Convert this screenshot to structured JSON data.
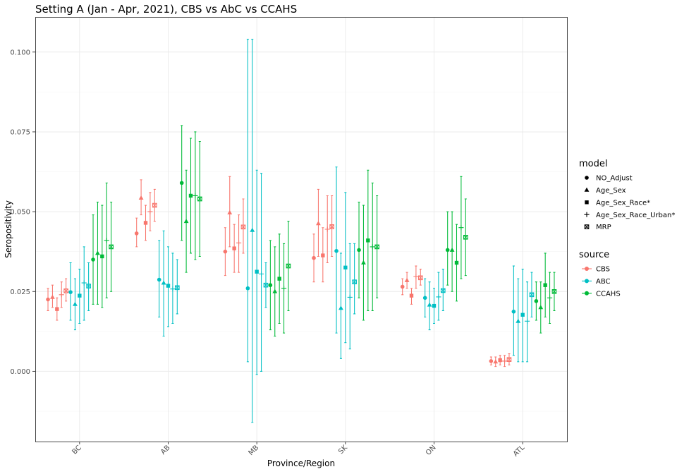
{
  "chart_data": {
    "type": "scatter",
    "title": "Setting A (Jan - Apr, 2021), CBS vs AbC vs CCAHS",
    "xlabel": "Province/Region",
    "ylabel": "Seropositivity",
    "categories": [
      "BC",
      "AB",
      "MB",
      "SK",
      "ON",
      "ATL"
    ],
    "ylim": [
      -0.022,
      0.111
    ],
    "y_ticks": [
      0.0,
      0.025,
      0.05,
      0.075,
      0.1
    ],
    "y_tick_labels": [
      "0.000",
      "0.025",
      "0.050",
      "0.075",
      "0.100"
    ],
    "grid": true,
    "legend_position": "right",
    "models": [
      "NO_Adjust",
      "Age_Sex",
      "Age_Sex_Race*",
      "Age_Sex_Race_Urban*",
      "MRP"
    ],
    "model_shapes": [
      "circle",
      "triangle",
      "square",
      "plus",
      "boxed-x"
    ],
    "legend_model_title": "model",
    "legend_source_title": "source",
    "sources": [
      {
        "name": "CBS",
        "color": "#F8766D"
      },
      {
        "name": "ABC",
        "color": "#00BFC4"
      },
      {
        "name": "CCAHS",
        "color": "#00BA38"
      }
    ],
    "series": [
      {
        "source": "CBS",
        "model": "NO_Adjust",
        "values": [
          0.0225,
          0.0432,
          0.0375,
          0.0355,
          0.0265,
          0.0032
        ],
        "lower": [
          0.019,
          0.039,
          0.03,
          0.028,
          0.024,
          0.002
        ],
        "upper": [
          0.026,
          0.048,
          0.045,
          0.043,
          0.029,
          0.0045
        ]
      },
      {
        "source": "CBS",
        "model": "Age_Sex",
        "values": [
          0.0232,
          0.0543,
          0.0497,
          0.0463,
          0.0285,
          0.003
        ],
        "lower": [
          0.02,
          0.049,
          0.039,
          0.036,
          0.026,
          0.0015
        ],
        "upper": [
          0.027,
          0.06,
          0.061,
          0.057,
          0.031,
          0.0045
        ]
      },
      {
        "source": "CBS",
        "model": "Age_Sex_Race*",
        "values": [
          0.0195,
          0.0465,
          0.0385,
          0.0363,
          0.0237,
          0.0035
        ],
        "lower": [
          0.016,
          0.041,
          0.031,
          0.028,
          0.021,
          0.002
        ],
        "upper": [
          0.023,
          0.052,
          0.046,
          0.045,
          0.026,
          0.005
        ]
      },
      {
        "source": "CBS",
        "model": "Age_Sex_Race_Urban*",
        "values": [
          0.024,
          0.05,
          0.0402,
          0.0445,
          0.0297,
          0.0032
        ],
        "lower": [
          0.02,
          0.044,
          0.031,
          0.034,
          0.026,
          0.0015
        ],
        "upper": [
          0.028,
          0.056,
          0.049,
          0.055,
          0.033,
          0.005
        ]
      },
      {
        "source": "CBS",
        "model": "MRP",
        "values": [
          0.0252,
          0.052,
          0.0452,
          0.0453,
          0.0293,
          0.0037
        ],
        "lower": [
          0.022,
          0.047,
          0.037,
          0.036,
          0.027,
          0.002
        ],
        "upper": [
          0.029,
          0.057,
          0.054,
          0.055,
          0.032,
          0.0055
        ]
      },
      {
        "source": "ABC",
        "model": "NO_Adjust",
        "values": [
          0.0248,
          0.0287,
          0.026,
          0.0377,
          0.023,
          0.0187
        ],
        "lower": [
          0.016,
          0.017,
          0.003,
          0.012,
          0.017,
          0.005
        ],
        "upper": [
          0.034,
          0.041,
          0.104,
          0.064,
          0.029,
          0.033
        ]
      },
      {
        "source": "ABC",
        "model": "Age_Sex",
        "values": [
          0.021,
          0.0277,
          0.0442,
          0.0198,
          0.0208,
          0.0157
        ],
        "lower": [
          0.013,
          0.011,
          -0.016,
          0.004,
          0.013,
          0.003
        ],
        "upper": [
          0.029,
          0.044,
          0.104,
          0.037,
          0.028,
          0.029
        ]
      },
      {
        "source": "ABC",
        "model": "Age_Sex_Race*",
        "values": [
          0.0237,
          0.0268,
          0.0312,
          0.0325,
          0.0205,
          0.0177
        ],
        "lower": [
          0.015,
          0.014,
          -0.001,
          0.009,
          0.015,
          0.003
        ],
        "upper": [
          0.032,
          0.039,
          0.063,
          0.056,
          0.026,
          0.032
        ]
      },
      {
        "source": "ABC",
        "model": "Age_Sex_Race_Urban*",
        "values": [
          0.0277,
          0.0258,
          0.0305,
          0.0232,
          0.0233,
          0.0157
        ],
        "lower": [
          0.016,
          0.015,
          0.0,
          0.007,
          0.016,
          0.003
        ],
        "upper": [
          0.039,
          0.037,
          0.062,
          0.04,
          0.031,
          0.028
        ]
      },
      {
        "source": "ABC",
        "model": "MRP",
        "values": [
          0.0267,
          0.0262,
          0.027,
          0.028,
          0.0253,
          0.024
        ],
        "lower": [
          0.019,
          0.018,
          0.02,
          0.018,
          0.019,
          0.017
        ],
        "upper": [
          0.034,
          0.035,
          0.034,
          0.04,
          0.032,
          0.031
        ]
      },
      {
        "source": "CCAHS",
        "model": "NO_Adjust",
        "values": [
          0.035,
          0.059,
          0.027,
          0.038,
          0.038,
          0.022
        ],
        "lower": [
          0.021,
          0.041,
          0.013,
          0.023,
          0.027,
          0.016
        ],
        "upper": [
          0.049,
          0.077,
          0.041,
          0.053,
          0.05,
          0.028
        ]
      },
      {
        "source": "CCAHS",
        "model": "Age_Sex",
        "values": [
          0.037,
          0.047,
          0.025,
          0.034,
          0.038,
          0.02
        ],
        "lower": [
          0.021,
          0.031,
          0.011,
          0.016,
          0.025,
          0.012
        ],
        "upper": [
          0.053,
          0.063,
          0.039,
          0.052,
          0.05,
          0.028
        ]
      },
      {
        "source": "CCAHS",
        "model": "Age_Sex_Race*",
        "values": [
          0.036,
          0.055,
          0.029,
          0.041,
          0.034,
          0.027
        ],
        "lower": [
          0.02,
          0.037,
          0.015,
          0.019,
          0.022,
          0.017
        ],
        "upper": [
          0.052,
          0.073,
          0.043,
          0.063,
          0.046,
          0.037
        ]
      },
      {
        "source": "CCAHS",
        "model": "Age_Sex_Race_Urban*",
        "values": [
          0.041,
          0.055,
          0.026,
          0.039,
          0.045,
          0.023
        ],
        "lower": [
          0.023,
          0.035,
          0.012,
          0.019,
          0.029,
          0.015
        ],
        "upper": [
          0.059,
          0.075,
          0.04,
          0.059,
          0.061,
          0.031
        ]
      },
      {
        "source": "CCAHS",
        "model": "MRP",
        "values": [
          0.039,
          0.054,
          0.033,
          0.039,
          0.042,
          0.025
        ],
        "lower": [
          0.025,
          0.036,
          0.019,
          0.023,
          0.03,
          0.019
        ],
        "upper": [
          0.053,
          0.072,
          0.047,
          0.055,
          0.054,
          0.031
        ]
      }
    ]
  }
}
